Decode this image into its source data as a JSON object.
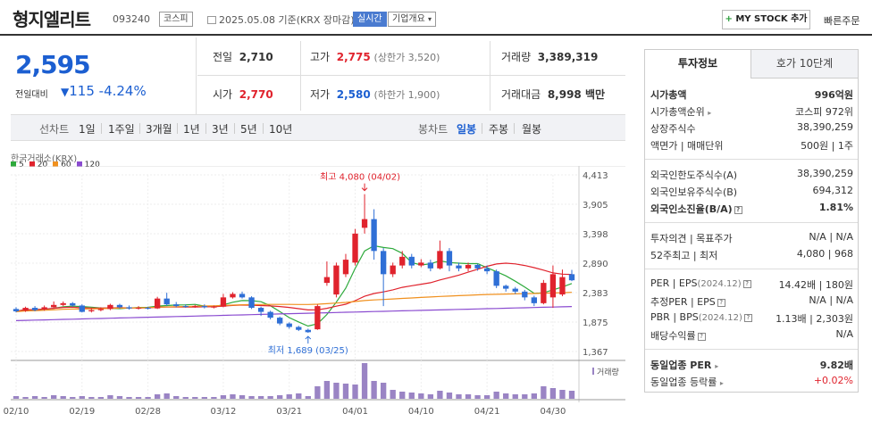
{
  "header": {
    "stock_name": "형지엘리트",
    "stock_code": "093240",
    "market_tag": "코스피",
    "date_text": "2025.05.08 기준(KRX 장마감)",
    "realtime_tag": "실시간",
    "company_overview": "기업개요",
    "mystock_button": "MY STOCK 추가",
    "quick_order": "빠른주문"
  },
  "quote": {
    "price": "2,595",
    "change_label": "전일대비",
    "change_value": "115",
    "change_pct": "-4.24%",
    "prev_label": "전일",
    "prev_value": "2,710",
    "high_label": "고가",
    "high_value": "2,775",
    "upper_limit": "(상한가 3,520)",
    "volume_label": "거래량",
    "volume_value": "3,389,319",
    "open_label": "시가",
    "open_value": "2,770",
    "low_label": "저가",
    "low_value": "2,580",
    "lower_limit": "(하한가 1,900)",
    "amount_label": "거래대금",
    "amount_value": "8,998 백만"
  },
  "period_bar": {
    "line_label": "선차트",
    "periods": [
      "1일",
      "1주일",
      "3개월",
      "1년",
      "3년",
      "5년",
      "10년"
    ],
    "candle_label": "봉차트",
    "candles": [
      "일봉",
      "주봉",
      "월봉"
    ]
  },
  "chart_data": {
    "type": "candlestick",
    "source": "한국거래소(KRX)",
    "legend": [
      {
        "name": "5",
        "color": "#2eaa3c"
      },
      {
        "name": "20",
        "color": "#e0232d"
      },
      {
        "name": "60",
        "color": "#f0901e"
      },
      {
        "name": "120",
        "color": "#8a4bd0"
      }
    ],
    "y_ticks": [
      "4,413",
      "3,905",
      "3,398",
      "2,890",
      "2,383",
      "1,875",
      "1,367"
    ],
    "y_range": [
      1367,
      4413
    ],
    "x_ticks": [
      {
        "label": "02/10",
        "index": 0
      },
      {
        "label": "02/19",
        "index": 7
      },
      {
        "label": "02/28",
        "index": 14
      },
      {
        "label": "03/12",
        "index": 22
      },
      {
        "label": "03/21",
        "index": 29
      },
      {
        "label": "04/01",
        "index": 36
      },
      {
        "label": "04/10",
        "index": 43
      },
      {
        "label": "04/21",
        "index": 50
      },
      {
        "label": "04/30",
        "index": 57
      }
    ],
    "high_annotation": {
      "text": "최고 4,080 (04/02)",
      "index": 37,
      "value": 4080
    },
    "low_annotation": {
      "text": "최저 1,689 (03/25)",
      "index": 31,
      "value": 1689
    },
    "volume_label": "거래량",
    "candles": [
      {
        "o": 2100,
        "c": 2060,
        "h": 2130,
        "l": 2040
      },
      {
        "o": 2070,
        "c": 2120,
        "h": 2140,
        "l": 2050
      },
      {
        "o": 2120,
        "c": 2080,
        "h": 2150,
        "l": 2060
      },
      {
        "o": 2090,
        "c": 2130,
        "h": 2160,
        "l": 2070
      },
      {
        "o": 2130,
        "c": 2170,
        "h": 2230,
        "l": 2110
      },
      {
        "o": 2170,
        "c": 2200,
        "h": 2230,
        "l": 2150
      },
      {
        "o": 2200,
        "c": 2160,
        "h": 2220,
        "l": 2140
      },
      {
        "o": 2160,
        "c": 2050,
        "h": 2180,
        "l": 2040
      },
      {
        "o": 2060,
        "c": 2080,
        "h": 2110,
        "l": 2040
      },
      {
        "o": 2080,
        "c": 2100,
        "h": 2130,
        "l": 2060
      },
      {
        "o": 2100,
        "c": 2170,
        "h": 2190,
        "l": 2080
      },
      {
        "o": 2170,
        "c": 2130,
        "h": 2190,
        "l": 2110
      },
      {
        "o": 2130,
        "c": 2110,
        "h": 2160,
        "l": 2090
      },
      {
        "o": 2110,
        "c": 2120,
        "h": 2150,
        "l": 2090
      },
      {
        "o": 2120,
        "c": 2110,
        "h": 2140,
        "l": 2090
      },
      {
        "o": 2110,
        "c": 2280,
        "h": 2310,
        "l": 2100
      },
      {
        "o": 2280,
        "c": 2180,
        "h": 2380,
        "l": 2150
      },
      {
        "o": 2180,
        "c": 2150,
        "h": 2220,
        "l": 2130
      },
      {
        "o": 2150,
        "c": 2140,
        "h": 2180,
        "l": 2120
      },
      {
        "o": 2140,
        "c": 2150,
        "h": 2170,
        "l": 2120
      },
      {
        "o": 2150,
        "c": 2130,
        "h": 2180,
        "l": 2110
      },
      {
        "o": 2130,
        "c": 2140,
        "h": 2160,
        "l": 2110
      },
      {
        "o": 2140,
        "c": 2300,
        "h": 2360,
        "l": 2130
      },
      {
        "o": 2300,
        "c": 2360,
        "h": 2390,
        "l": 2280
      },
      {
        "o": 2360,
        "c": 2300,
        "h": 2400,
        "l": 2280
      },
      {
        "o": 2300,
        "c": 2120,
        "h": 2320,
        "l": 2100
      },
      {
        "o": 2120,
        "c": 2050,
        "h": 2140,
        "l": 1980
      },
      {
        "o": 2050,
        "c": 1950,
        "h": 2070,
        "l": 1920
      },
      {
        "o": 1950,
        "c": 1850,
        "h": 1970,
        "l": 1820
      },
      {
        "o": 1850,
        "c": 1790,
        "h": 1870,
        "l": 1760
      },
      {
        "o": 1790,
        "c": 1740,
        "h": 1810,
        "l": 1720
      },
      {
        "o": 1740,
        "c": 1700,
        "h": 1760,
        "l": 1689
      },
      {
        "o": 1750,
        "c": 2150,
        "h": 2180,
        "l": 1740
      },
      {
        "o": 2550,
        "c": 2650,
        "h": 2920,
        "l": 2500
      },
      {
        "o": 2350,
        "c": 2850,
        "h": 2900,
        "l": 2300
      },
      {
        "o": 2700,
        "c": 2950,
        "h": 3050,
        "l": 2650
      },
      {
        "o": 2900,
        "c": 3400,
        "h": 3480,
        "l": 2850
      },
      {
        "o": 3500,
        "c": 3650,
        "h": 4080,
        "l": 3400
      },
      {
        "o": 3650,
        "c": 3100,
        "h": 3820,
        "l": 2950
      },
      {
        "o": 3100,
        "c": 2700,
        "h": 3150,
        "l": 2150
      },
      {
        "o": 2700,
        "c": 2850,
        "h": 2900,
        "l": 2650
      },
      {
        "o": 2850,
        "c": 3000,
        "h": 3100,
        "l": 2800
      },
      {
        "o": 3000,
        "c": 2850,
        "h": 3050,
        "l": 2800
      },
      {
        "o": 2850,
        "c": 2900,
        "h": 2960,
        "l": 2820
      },
      {
        "o": 2900,
        "c": 2800,
        "h": 2950,
        "l": 2750
      },
      {
        "o": 2800,
        "c": 3100,
        "h": 3280,
        "l": 2780
      },
      {
        "o": 3100,
        "c": 2850,
        "h": 3150,
        "l": 2750
      },
      {
        "o": 2850,
        "c": 2800,
        "h": 2900,
        "l": 2750
      },
      {
        "o": 2800,
        "c": 2860,
        "h": 2900,
        "l": 2750
      },
      {
        "o": 2860,
        "c": 2800,
        "h": 2880,
        "l": 2760
      },
      {
        "o": 2800,
        "c": 2750,
        "h": 2850,
        "l": 2700
      },
      {
        "o": 2750,
        "c": 2500,
        "h": 2780,
        "l": 2460
      },
      {
        "o": 2500,
        "c": 2450,
        "h": 2520,
        "l": 2400
      },
      {
        "o": 2450,
        "c": 2400,
        "h": 2480,
        "l": 2360
      },
      {
        "o": 2400,
        "c": 2300,
        "h": 2430,
        "l": 2250
      },
      {
        "o": 2300,
        "c": 2200,
        "h": 2330,
        "l": 2150
      },
      {
        "o": 2200,
        "c": 2550,
        "h": 2600,
        "l": 2180
      },
      {
        "o": 2300,
        "c": 2700,
        "h": 2850,
        "l": 2120
      },
      {
        "o": 2350,
        "c": 2650,
        "h": 2780,
        "l": 2320
      },
      {
        "o": 2700,
        "c": 2595,
        "h": 2775,
        "l": 2580
      }
    ],
    "volumes": [
      3,
      2,
      3,
      2,
      4,
      3,
      2,
      3,
      2,
      2,
      4,
      3,
      2,
      2,
      2,
      5,
      6,
      3,
      2,
      2,
      2,
      2,
      4,
      5,
      4,
      3,
      3,
      3,
      4,
      5,
      6,
      3,
      14,
      20,
      18,
      17,
      16,
      40,
      20,
      18,
      10,
      8,
      7,
      6,
      5,
      9,
      7,
      5,
      5,
      4,
      4,
      8,
      6,
      5,
      5,
      6,
      14,
      12,
      10,
      9
    ]
  },
  "panel": {
    "tab_active": "투자정보",
    "tab_other": "호가 10단계",
    "market_cap_label": "시가총액",
    "market_cap_value": "996억원",
    "cap_rank_label": "시가총액순위",
    "cap_rank_value": "코스피 972위",
    "shares_label": "상장주식수",
    "shares_value": "38,390,259",
    "par_label": "액면가 | 매매단위",
    "par_value": "500원 | 1주",
    "foreign_limit_label": "외국인한도주식수(A)",
    "foreign_limit_value": "38,390,259",
    "foreign_hold_label": "외국인보유주식수(B)",
    "foreign_hold_value": "694,312",
    "foreign_ratio_label": "외국인소진율(B/A)",
    "foreign_ratio_value": "1.81%",
    "opinion_label": "투자의견 | 목표주가",
    "opinion_value": "N/A | N/A",
    "w52_label": "52주최고 | 최저",
    "w52_value": "4,080 | 968",
    "per_label": "PER | EPS",
    "per_period": "(2024.12)",
    "per_value": "14.42배 | 180원",
    "est_label": "추정PER | EPS",
    "est_value": "N/A | N/A",
    "pbr_label": "PBR | BPS",
    "pbr_period": "(2024.12)",
    "pbr_value": "1.13배 | 2,303원",
    "div_label": "배당수익률",
    "div_value": "N/A",
    "ind_per_label": "동일업종 PER",
    "ind_per_value": "9.82배",
    "ind_rate_label": "동일업종 등락률",
    "ind_rate_value": "+0.02%"
  }
}
